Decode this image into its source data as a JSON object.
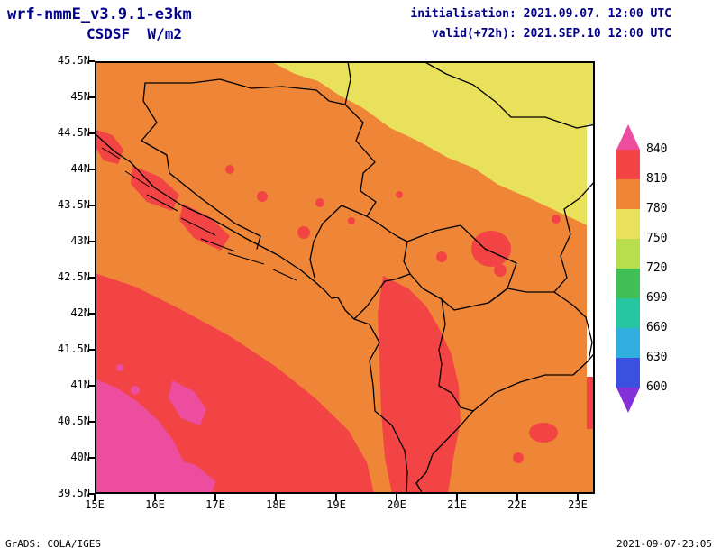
{
  "header": {
    "model": "wrf-nmmE_v3.9.1-e3km",
    "variable": "CSDSF  W/m2",
    "init": "initialisation: 2021.09.07. 12:00 UTC",
    "valid": "valid(+72h): 2021.SEP.10 12:00 UTC"
  },
  "footer": {
    "credit": "GrADS: COLA/IGES",
    "timestamp": "2021-09-07-23:05"
  },
  "map": {
    "lat_labels": [
      "45.5N",
      "45N",
      "44.5N",
      "44N",
      "43.5N",
      "43N",
      "42.5N",
      "42N",
      "41.5N",
      "41N",
      "40.5N",
      "40N",
      "39.5N"
    ],
    "lon_labels": [
      "15E",
      "16E",
      "17E",
      "18E",
      "19E",
      "20E",
      "21E",
      "22E",
      "23E"
    ]
  },
  "colorbar": {
    "labels": [
      "840",
      "810",
      "780",
      "750",
      "720",
      "690",
      "660",
      "630",
      "600"
    ],
    "segment_colors": [
      "#f24444",
      "#ef8536",
      "#e9e05b",
      "#b8dd4d",
      "#3fbf54",
      "#26c6a0",
      "#30aede",
      "#3c50e0"
    ]
  },
  "palette": {
    "magenta": "#ed4d9e",
    "red": "#f24444",
    "orange": "#ef8536",
    "yellow": "#e9e05b",
    "yellow_green": "#b8dd4d",
    "green": "#3fbf54",
    "teal": "#26c6a0",
    "cyan": "#30aede",
    "blue": "#3c50e0",
    "purple": "#8430d8",
    "header_text": "#00008b"
  },
  "chart_data": {
    "type": "heatmap",
    "title": "CSDSF  W/m2",
    "model": "wrf-nmmE_v3.9.1-e3km",
    "initialisation": "2021.09.07. 12:00 UTC",
    "valid": "valid(+72h) 2021.SEP.10 12:00 UTC",
    "units": "W/m2",
    "extent": {
      "lon_min": 15,
      "lon_max": 23.3,
      "lat_min": 39.5,
      "lat_max": 45.5
    },
    "levels": [
      600,
      630,
      660,
      690,
      720,
      750,
      780,
      810,
      840
    ],
    "level_colors_low_to_high": [
      "#8430d8",
      "#3c50e0",
      "#30aede",
      "#26c6a0",
      "#3fbf54",
      "#b8dd4d",
      "#e9e05b",
      "#ef8536",
      "#f24444",
      "#ed4d9e"
    ],
    "field_summary": [
      {
        "value_range": "750-780",
        "color": "yellow",
        "region": "northeast of domain (Pannonian plain / northern Serbia toward Romania)"
      },
      {
        "value_range": "780-810",
        "color": "orange",
        "region": "most of the domain"
      },
      {
        "value_range": "810-840",
        "color": "red",
        "region": "Dalmatian coast patches, southern Adriatic, Montenegro-Albania-Kosovo area, scattered spots in eastern Serbia"
      },
      {
        "value_range": ">840",
        "color": "magenta",
        "region": "far southwest corner of domain (southern Adriatic / Ionian)"
      }
    ],
    "legend_position": "right vertical colorbar with over/under arrows"
  }
}
